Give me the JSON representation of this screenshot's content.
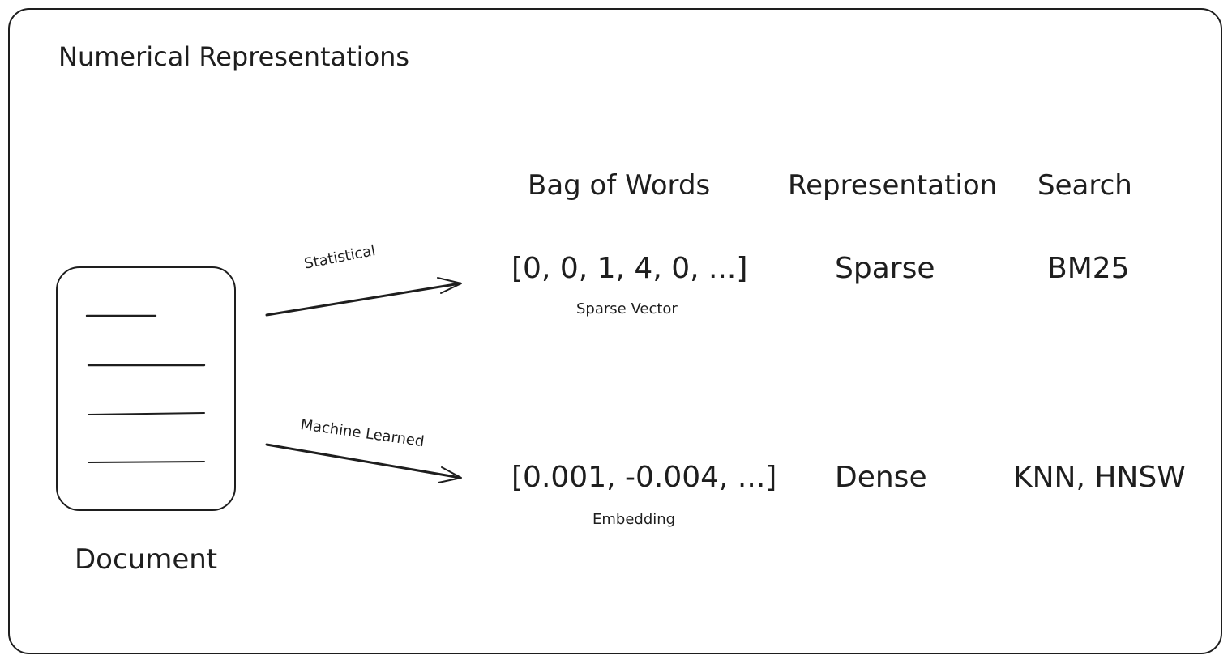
{
  "title": "Numerical Representations",
  "headers": {
    "bag_of_words": "Bag of Words",
    "representation": "Representation",
    "search": "Search"
  },
  "document": {
    "label": "Document",
    "icon": "document-icon"
  },
  "rows": [
    {
      "edge_label": "Statistical",
      "vector": "[0, 0, 1, 4, 0, ...]",
      "vector_label": "Sparse Vector",
      "representation": "Sparse",
      "search": "BM25"
    },
    {
      "edge_label": "Machine Learned",
      "vector": "[0.001, -0.004, ...]",
      "vector_label": "Embedding",
      "representation": "Dense",
      "search": "KNN, HNSW"
    }
  ],
  "colors": {
    "stroke": "#1e1e1e",
    "background": "#ffffff"
  }
}
